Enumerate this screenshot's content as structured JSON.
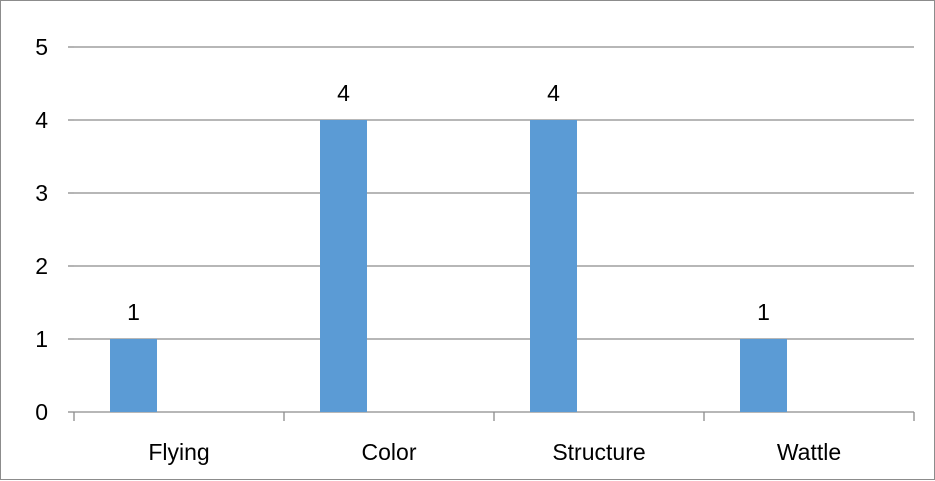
{
  "chart_data": {
    "type": "bar",
    "categories": [
      "Flying",
      "Color",
      "Structure",
      "Wattle"
    ],
    "values": [
      1,
      4,
      4,
      1
    ],
    "data_labels": [
      "1",
      "4",
      "4",
      "1"
    ],
    "title": "",
    "xlabel": "",
    "ylabel": "",
    "ylim": [
      0,
      5
    ],
    "yticks": [
      "0",
      "1",
      "2",
      "3",
      "4",
      "5"
    ],
    "grid": true,
    "legend": "none",
    "bar_color": "#5b9bd5",
    "grid_color": "#8c8c8c"
  }
}
